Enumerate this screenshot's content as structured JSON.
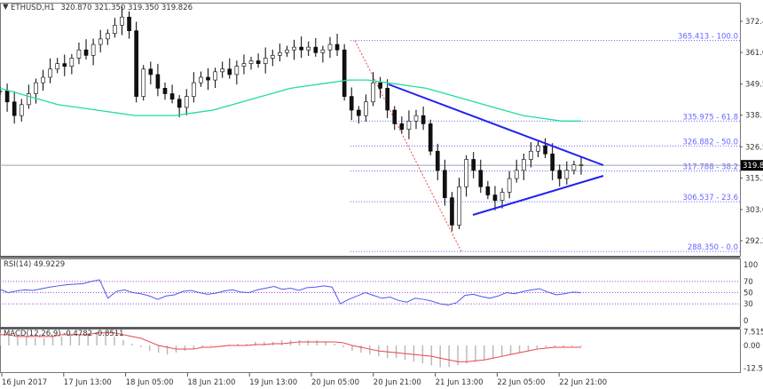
{
  "header": {
    "arrow": "▼",
    "symbol": "ETHUSD,H1",
    "ohlc": "320.870 321.350 319.350 319.826"
  },
  "price_axis": {
    "ticks": [
      "372.445",
      "361.070",
      "349.520",
      "338.145",
      "326.595",
      "315.220",
      "303.670",
      "292.295"
    ],
    "current": "319.826"
  },
  "fib_levels": [
    {
      "price": 365.413,
      "label": "365.413 - 100.0"
    },
    {
      "price": 335.975,
      "label": "335.975 - 61.8"
    },
    {
      "price": 326.882,
      "label": "326.882 - 50.0"
    },
    {
      "price": 317.788,
      "label": "317.788 - 38.2"
    },
    {
      "price": 306.537,
      "label": "306.537 - 23.6"
    },
    {
      "price": 288.35,
      "label": "288.350 - 0.0"
    }
  ],
  "rsi": {
    "label": "RSI(14) 49.9229",
    "ticks": [
      "100",
      "70",
      "50",
      "30",
      "0"
    ],
    "values": [
      56,
      50,
      53,
      55,
      54,
      57,
      60,
      62,
      64,
      65,
      66,
      70,
      73,
      40,
      52,
      55,
      50,
      48,
      44,
      38,
      44,
      46,
      52,
      54,
      50,
      47,
      49,
      53,
      55,
      51,
      50,
      55,
      58,
      61,
      56,
      58,
      54,
      59,
      60,
      62,
      60,
      30,
      38,
      44,
      50,
      45,
      40,
      42,
      36,
      33,
      40,
      38,
      35,
      30,
      28,
      32,
      45,
      47,
      43,
      40,
      44,
      50,
      48,
      52,
      55,
      57,
      51,
      46,
      48,
      51,
      50
    ],
    "colors": {
      "line": "#5555ee",
      "levels": "#aa44dd"
    }
  },
  "macd": {
    "label": "MACD(12,26,9) -0.4782 -0.8511",
    "ticks": [
      "7.5151",
      "0.00",
      "-12.5262"
    ],
    "hist": [
      7,
      6,
      5,
      5,
      4,
      4,
      5,
      5,
      6,
      6,
      7,
      7,
      6,
      5,
      3,
      1,
      -1,
      -3,
      -4,
      -5,
      -4,
      -3,
      -2,
      -1,
      -0.5,
      0,
      0.5,
      1,
      1,
      2,
      2,
      2,
      3,
      3,
      3,
      3,
      3,
      2,
      1,
      -1,
      -3,
      -4,
      -5,
      -6,
      -7,
      -7,
      -8,
      -9,
      -10,
      -11,
      -12,
      -12,
      -11,
      -10,
      -9,
      -8,
      -7,
      -6,
      -5,
      -4,
      -3,
      -2,
      -1,
      -1,
      -1,
      -0.5,
      -0.5
    ],
    "signal": [
      6,
      6,
      5,
      5,
      5,
      5,
      5,
      6,
      6,
      6,
      6,
      7,
      7,
      7,
      6,
      5,
      4,
      2,
      0,
      -1,
      -2,
      -2,
      -2,
      -1,
      -1,
      -0.5,
      0,
      0,
      0,
      0.5,
      0.5,
      1,
      1,
      1.5,
      2,
      2,
      2,
      2,
      2,
      1.5,
      0,
      -1,
      -2,
      -3,
      -3.5,
      -4,
      -4.5,
      -5,
      -5.5,
      -6,
      -7,
      -8,
      -9,
      -9,
      -8.5,
      -8,
      -7,
      -6,
      -5,
      -4,
      -3,
      -2,
      -1.5,
      -1,
      -1,
      -1,
      -1
    ],
    "colors": {
      "hist": "#bbbbbb",
      "signal": "#ee4444"
    }
  },
  "time_axis": [
    "16 Jun 2017",
    "17 Jun 13:00",
    "18 Jun 05:00",
    "18 Jun 21:00",
    "19 Jun 13:00",
    "20 Jun 05:00",
    "20 Jun 21:00",
    "21 Jun 13:00",
    "22 Jun 05:00",
    "22 Jun 21:00"
  ],
  "chart_data": {
    "type": "candlestick",
    "symbol": "ETHUSD",
    "timeframe": "H1",
    "closes": [
      347,
      343,
      338,
      342,
      346,
      350,
      352,
      355,
      357,
      356,
      359,
      362,
      360,
      364,
      366,
      368,
      371,
      374,
      369,
      345,
      355,
      353,
      348,
      346,
      344,
      341,
      345,
      350,
      352,
      351,
      354,
      355,
      353,
      356,
      357,
      358,
      357,
      359,
      360,
      361,
      362,
      363,
      362,
      363,
      361,
      362,
      364,
      362,
      345,
      340,
      338,
      343,
      350,
      348,
      340,
      335,
      333,
      336,
      338,
      335,
      325,
      318,
      308,
      298,
      312,
      322,
      318,
      312,
      309,
      307,
      310,
      315,
      318,
      322,
      325,
      327,
      324,
      318,
      315,
      318,
      320,
      320
    ],
    "ma": [
      348,
      346,
      344,
      342,
      341,
      340,
      339,
      338,
      338,
      338,
      339,
      340,
      342,
      344,
      346,
      348,
      349,
      350,
      351,
      351,
      350,
      349,
      348,
      346,
      344,
      342,
      340,
      338,
      337,
      336,
      336
    ],
    "trendline_color": "#2222ee",
    "ma_color": "#22dd99",
    "bull_color": "#00aa00",
    "bear_color": "#cc0000"
  }
}
